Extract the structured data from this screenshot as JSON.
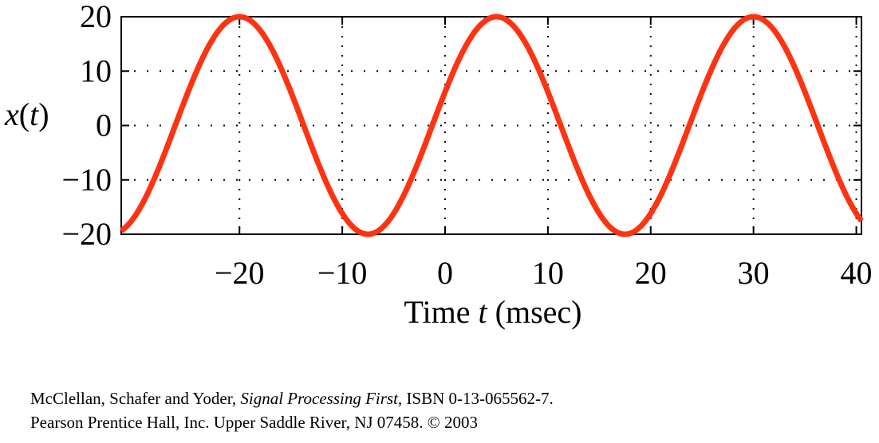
{
  "chart_data": {
    "type": "line",
    "xlabel_prefix": "Time ",
    "xlabel_var": "t",
    "xlabel_suffix": " (msec)",
    "ylabel_var": "x",
    "ylabel_paren_open": "(",
    "ylabel_arg": "t",
    "ylabel_paren_close": ")",
    "xlim": [
      -31.5,
      40.5
    ],
    "ylim": [
      -20,
      20
    ],
    "xticks": [
      -20,
      -10,
      0,
      10,
      20,
      30,
      40
    ],
    "xtick_labels": [
      "−20",
      "−10",
      "0",
      "10",
      "20",
      "30",
      "40"
    ],
    "yticks": [
      -20,
      -10,
      0,
      10,
      20
    ],
    "ytick_labels": [
      "−20",
      "−10",
      "0",
      "10",
      "20"
    ],
    "grid": true,
    "series": [
      {
        "color": "#ff3311",
        "amplitude": 20,
        "period_ms": 25,
        "peak_at_ms": 5,
        "x": [
          -31.5,
          -30,
          -27.5,
          -25,
          -22.5,
          -20,
          -17.5,
          -15,
          -12.5,
          -10,
          -7.5,
          -5,
          -2.5,
          0,
          2.5,
          5,
          7.5,
          10,
          12.5,
          15,
          17.5,
          20,
          22.5,
          25,
          27.5,
          30,
          32.5,
          35,
          37.5,
          40,
          40.5
        ],
        "y": [
          -18.8,
          -16.2,
          -6.2,
          6.2,
          16.2,
          20,
          16.2,
          6.2,
          -6.2,
          -16.2,
          -20,
          -16.2,
          -6.2,
          6.2,
          16.2,
          20,
          16.2,
          6.2,
          -6.2,
          -16.2,
          -20,
          -16.2,
          -6.2,
          6.2,
          16.2,
          20,
          16.2,
          6.2,
          -6.2,
          -16.2,
          -17.5
        ]
      }
    ]
  },
  "credits": {
    "line1_authors": "McClellan, Schafer and Yoder, ",
    "line1_title": "Signal Processing First,",
    "line1_isbn": " ISBN 0-13-065562-7.",
    "line2": "Pearson Prentice Hall, Inc.  Upper Saddle River, NJ 07458.  © 2003"
  }
}
